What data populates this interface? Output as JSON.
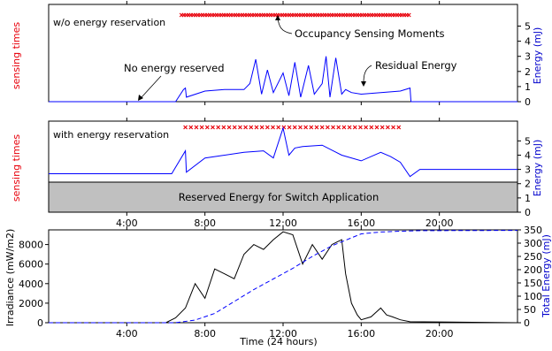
{
  "chart_data": [
    {
      "type": "line",
      "panel_label": "w/o energy reservation",
      "ylabel_left": "sensing times",
      "ylabel_right": "Energy (mJ)",
      "y_ticks": [
        "0",
        "1",
        "2",
        "3",
        "4",
        "5"
      ],
      "x_ticks": [
        "4:00",
        "8:00",
        "12:00",
        "16:00",
        "20:00"
      ],
      "xlim_hours": [
        0,
        24
      ],
      "ylim": [
        0,
        6.2
      ],
      "annotations": {
        "occupancy": "Occupancy Sensing Moments",
        "no_reserve": "No energy reserved",
        "residual": "Residual Energy"
      },
      "energy_series": {
        "name": "Energy",
        "color": "#0000ff",
        "x_hours": [
          0,
          6.5,
          6.9,
          7.0,
          7.05,
          8.0,
          9.0,
          10.0,
          10.3,
          10.6,
          10.9,
          11.2,
          11.5,
          12.0,
          12.3,
          12.6,
          12.9,
          13.3,
          13.6,
          14.0,
          14.2,
          14.4,
          14.7,
          15.0,
          15.2,
          15.5,
          16.0,
          17.0,
          18.0,
          18.5,
          18.55,
          24
        ],
        "y": [
          0,
          0,
          0.8,
          0.9,
          0.3,
          0.7,
          0.8,
          0.8,
          1.2,
          2.8,
          0.5,
          2.1,
          0.6,
          1.9,
          0.4,
          2.6,
          0.3,
          2.4,
          0.5,
          1.2,
          3.0,
          0.3,
          2.9,
          0.5,
          0.8,
          0.6,
          0.5,
          0.6,
          0.7,
          0.9,
          0,
          0
        ]
      },
      "sensing_series": {
        "name": "sensing times",
        "color": "#e8000b",
        "start_hours": 6.8,
        "end_hours": 18.5
      }
    },
    {
      "type": "line",
      "panel_label": "with energy reservation",
      "ylabel_left": "sensing times",
      "ylabel_right": "Energy (mJ)",
      "y_ticks": [
        "0",
        "1",
        "2",
        "3",
        "4",
        "5"
      ],
      "x_ticks": [
        "4:00",
        "8:00",
        "12:00",
        "16:00",
        "20:00"
      ],
      "xlim_hours": [
        0,
        24
      ],
      "ylim": [
        0,
        6.2
      ],
      "reserved_label": "Reserved Energy for Switch Application",
      "reserved_level": 2,
      "energy_series": {
        "name": "Energy",
        "color": "#0000ff",
        "x_hours": [
          0,
          6.3,
          7.0,
          7.05,
          8.0,
          9.0,
          10.0,
          11.0,
          11.5,
          12.0,
          12.3,
          12.6,
          13.0,
          14.0,
          15.0,
          16.0,
          17.0,
          17.5,
          18.0,
          18.5,
          19.0,
          24
        ],
        "y": [
          2.7,
          2.7,
          4.3,
          2.8,
          3.8,
          4.0,
          4.2,
          4.3,
          3.8,
          5.9,
          4.0,
          4.5,
          4.6,
          4.7,
          4.0,
          3.6,
          4.2,
          3.9,
          3.5,
          2.5,
          3.0,
          3.0
        ]
      },
      "sensing_series": {
        "name": "sensing times",
        "color": "#e8000b",
        "start_hours": 7.0,
        "end_hours": 18.0
      }
    },
    {
      "type": "line",
      "ylabel_left": "Irradiance (mW/m2)",
      "ylabel_right": "Total Energy (mJ)",
      "xlabel": "Time (24 hours)",
      "x_ticks": [
        "4:00",
        "8:00",
        "12:00",
        "16:00",
        "20:00"
      ],
      "xlim_hours": [
        0,
        24
      ],
      "left_ylim": [
        0,
        9500
      ],
      "left_ticks": [
        "0",
        "2000",
        "4000",
        "6000",
        "8000"
      ],
      "right_ylim": [
        0,
        350
      ],
      "right_ticks": [
        "0",
        "50",
        "100",
        "150",
        "200",
        "250",
        "300",
        "350"
      ],
      "irradiance_series": {
        "name": "Irradiance",
        "color": "#000000",
        "x_hours": [
          0,
          6.0,
          6.5,
          7.0,
          7.3,
          7.5,
          8.0,
          8.5,
          9.0,
          9.5,
          10.0,
          10.5,
          11.0,
          11.5,
          12.0,
          12.5,
          13.0,
          13.5,
          14.0,
          14.5,
          15.0,
          15.2,
          15.5,
          15.8,
          16.0,
          16.5,
          17.0,
          17.3,
          17.6,
          18.0,
          18.5,
          24
        ],
        "y": [
          0,
          0,
          500,
          1500,
          3000,
          4000,
          2500,
          5500,
          5000,
          4500,
          7000,
          8000,
          7500,
          8500,
          9300,
          9000,
          6000,
          8000,
          6500,
          8000,
          8500,
          5000,
          2000,
          800,
          300,
          600,
          1500,
          800,
          600,
          300,
          100,
          0
        ]
      },
      "total_energy_series": {
        "name": "Total Energy",
        "color": "#0000ff",
        "x_hours": [
          0,
          6.5,
          7.5,
          8.5,
          9.5,
          10.5,
          11.5,
          12.5,
          13.5,
          14.5,
          15.5,
          16.0,
          17.0,
          18.0,
          19.0,
          24
        ],
        "y": [
          0,
          0,
          10,
          35,
          80,
          125,
          165,
          205,
          250,
          290,
          320,
          335,
          342,
          345,
          347,
          348
        ]
      }
    }
  ]
}
